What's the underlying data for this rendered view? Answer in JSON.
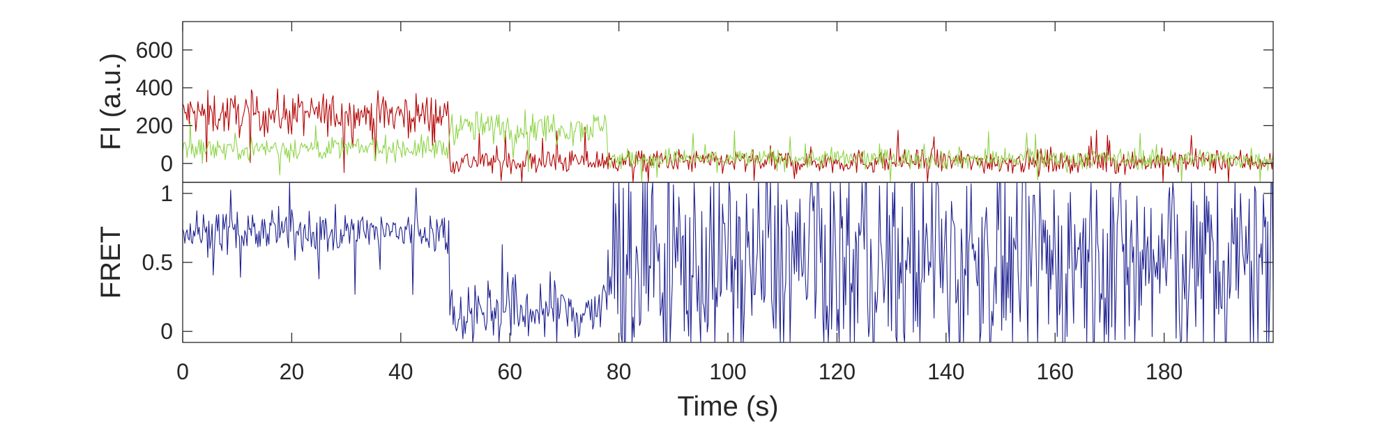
{
  "chart_data": [
    {
      "type": "line",
      "title": "",
      "xlabel": "",
      "ylabel": "FI (a.u.)",
      "xlim": [
        0,
        200
      ],
      "ylim": [
        -100,
        750
      ],
      "yticks": [
        0,
        200,
        400,
        600
      ],
      "ytick_labels": [
        "0",
        "200",
        "400",
        "600"
      ],
      "grid": false,
      "series": [
        {
          "color": "#b40000",
          "segments": [
            {
              "x": [
                0,
                49
              ],
              "mean": 260,
              "noise": 80
            },
            {
              "x": [
                49,
                200
              ],
              "mean": 10,
              "noise": 45
            }
          ]
        },
        {
          "color": "#8ed448",
          "segments": [
            {
              "x": [
                0,
                49
              ],
              "mean": 80,
              "noise": 45
            },
            {
              "x": [
                49,
                78
              ],
              "mean": 190,
              "noise": 60
            },
            {
              "x": [
                78,
                200
              ],
              "mean": 25,
              "noise": 40
            }
          ]
        }
      ]
    },
    {
      "type": "line",
      "title": "",
      "xlabel": "Time (s)",
      "ylabel": "FRET",
      "xlim": [
        0,
        200
      ],
      "ylim": [
        -0.08,
        1.08
      ],
      "yticks": [
        0,
        0.5,
        1
      ],
      "ytick_labels": [
        "0",
        "0.5",
        "1"
      ],
      "xticks": [
        0,
        20,
        40,
        60,
        80,
        100,
        120,
        140,
        160,
        180
      ],
      "xtick_labels": [
        "0",
        "20",
        "40",
        "60",
        "80",
        "100",
        "120",
        "140",
        "160",
        "180"
      ],
      "grid": false,
      "series": [
        {
          "color": "#1c1f8f",
          "segments": [
            {
              "x": [
                0,
                49
              ],
              "mean": 0.72,
              "noise": 0.11
            },
            {
              "x": [
                49,
                78
              ],
              "mean": 0.15,
              "noise": 0.18
            },
            {
              "x": [
                78,
                200
              ],
              "mean": 0.5,
              "noise": 0.55
            }
          ]
        }
      ]
    }
  ]
}
